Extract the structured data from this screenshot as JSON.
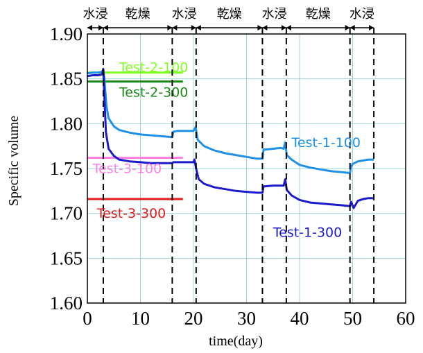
{
  "chart_data": {
    "type": "line",
    "title": "",
    "xlabel": "time(day)",
    "ylabel": "Specific volume",
    "xlim": [
      0,
      60
    ],
    "ylim": [
      1.6,
      1.9
    ],
    "x_ticks": [
      0,
      10,
      20,
      30,
      40,
      50,
      60
    ],
    "y_ticks": [
      "1.60",
      "1.65",
      "1.70",
      "1.75",
      "1.80",
      "1.85",
      "1.90"
    ],
    "grid": true,
    "grid_color": "#9fd4d4",
    "phase_boundaries": [
      3,
      16,
      20.5,
      33,
      37.5,
      49.5,
      54
    ],
    "phases": [
      {
        "label": "水浸",
        "start": 0,
        "end": 3
      },
      {
        "label": "乾燥",
        "start": 3,
        "end": 16
      },
      {
        "label": "水浸",
        "start": 16,
        "end": 20.5
      },
      {
        "label": "乾燥",
        "start": 20.5,
        "end": 33
      },
      {
        "label": "水浸",
        "start": 33,
        "end": 37.5
      },
      {
        "label": "乾燥",
        "start": 37.5,
        "end": 49.5
      },
      {
        "label": "水浸",
        "start": 49.5,
        "end": 54
      }
    ],
    "series": [
      {
        "name": "Test-2-100",
        "color": "#80ff20",
        "x": [
          0,
          18
        ],
        "y": [
          1.857,
          1.857
        ]
      },
      {
        "name": "Test-2-300",
        "color": "#1a8a1a",
        "x": [
          0,
          18
        ],
        "y": [
          1.847,
          1.847
        ]
      },
      {
        "name": "Test-3-100",
        "color": "#ff80e6",
        "x": [
          0,
          18
        ],
        "y": [
          1.762,
          1.762
        ]
      },
      {
        "name": "Test-3-300",
        "color": "#e61919",
        "x": [
          0,
          18
        ],
        "y": [
          1.716,
          1.716
        ]
      },
      {
        "name": "Test-1-100",
        "color": "#1e90e8",
        "x": [
          0,
          1,
          2,
          2.8,
          3.0,
          3.2,
          3.6,
          4,
          5,
          6,
          8,
          10,
          12,
          14,
          16,
          16.2,
          17,
          19,
          20,
          20.4,
          20.8,
          22,
          24,
          26,
          28,
          30,
          32,
          33,
          33.2,
          35,
          36.5,
          37,
          37.3,
          37.6,
          38.5,
          40,
          42,
          44,
          46,
          48,
          49.5,
          49.7,
          50,
          51,
          52,
          53,
          54
        ],
        "y": [
          1.856,
          1.857,
          1.857,
          1.858,
          1.861,
          1.85,
          1.82,
          1.806,
          1.797,
          1.793,
          1.79,
          1.788,
          1.787,
          1.786,
          1.785,
          1.791,
          1.792,
          1.792,
          1.792,
          1.796,
          1.782,
          1.775,
          1.77,
          1.767,
          1.765,
          1.763,
          1.761,
          1.761,
          1.771,
          1.772,
          1.773,
          1.772,
          1.779,
          1.765,
          1.76,
          1.754,
          1.751,
          1.749,
          1.747,
          1.746,
          1.745,
          1.752,
          1.755,
          1.758,
          1.759,
          1.76,
          1.76
        ]
      },
      {
        "name": "Test-1-300",
        "color": "#1a1acc",
        "x": [
          0,
          1,
          2,
          2.8,
          3.0,
          3.2,
          3.5,
          4,
          5,
          6,
          8,
          10,
          12,
          14,
          16,
          16.2,
          18,
          20,
          20.2,
          20.5,
          21,
          22,
          24,
          26,
          28,
          30,
          32,
          33,
          33.2,
          35,
          37,
          37.3,
          37.6,
          38.5,
          40,
          42,
          44,
          46,
          48,
          49.5,
          49.7,
          50.2,
          51,
          52,
          53,
          54
        ],
        "y": [
          1.853,
          1.854,
          1.854,
          1.855,
          1.861,
          1.83,
          1.79,
          1.772,
          1.764,
          1.76,
          1.758,
          1.757,
          1.756,
          1.756,
          1.756,
          1.757,
          1.757,
          1.757,
          1.76,
          1.75,
          1.738,
          1.733,
          1.729,
          1.727,
          1.725,
          1.724,
          1.723,
          1.723,
          1.73,
          1.731,
          1.731,
          1.738,
          1.726,
          1.72,
          1.715,
          1.712,
          1.711,
          1.71,
          1.709,
          1.708,
          1.713,
          1.706,
          1.714,
          1.716,
          1.717,
          1.717
        ]
      }
    ],
    "labels": [
      {
        "series": "Test-2-100",
        "text": "Test-2-100",
        "x": 6,
        "y": 1.858
      },
      {
        "series": "Test-2-300",
        "text": "Test-2-300",
        "x": 6,
        "y": 1.83
      },
      {
        "series": "Test-3-100",
        "text": "Test-3-100",
        "x": 1,
        "y": 1.745
      },
      {
        "series": "Test-3-300",
        "text": "Test-3-300",
        "x": 1.8,
        "y": 1.695
      },
      {
        "series": "Test-1-100",
        "text": "Test-1-100",
        "x": 38.5,
        "y": 1.774
      },
      {
        "series": "Test-1-300",
        "text": "Test-1-300",
        "x": 35,
        "y": 1.674
      }
    ]
  }
}
